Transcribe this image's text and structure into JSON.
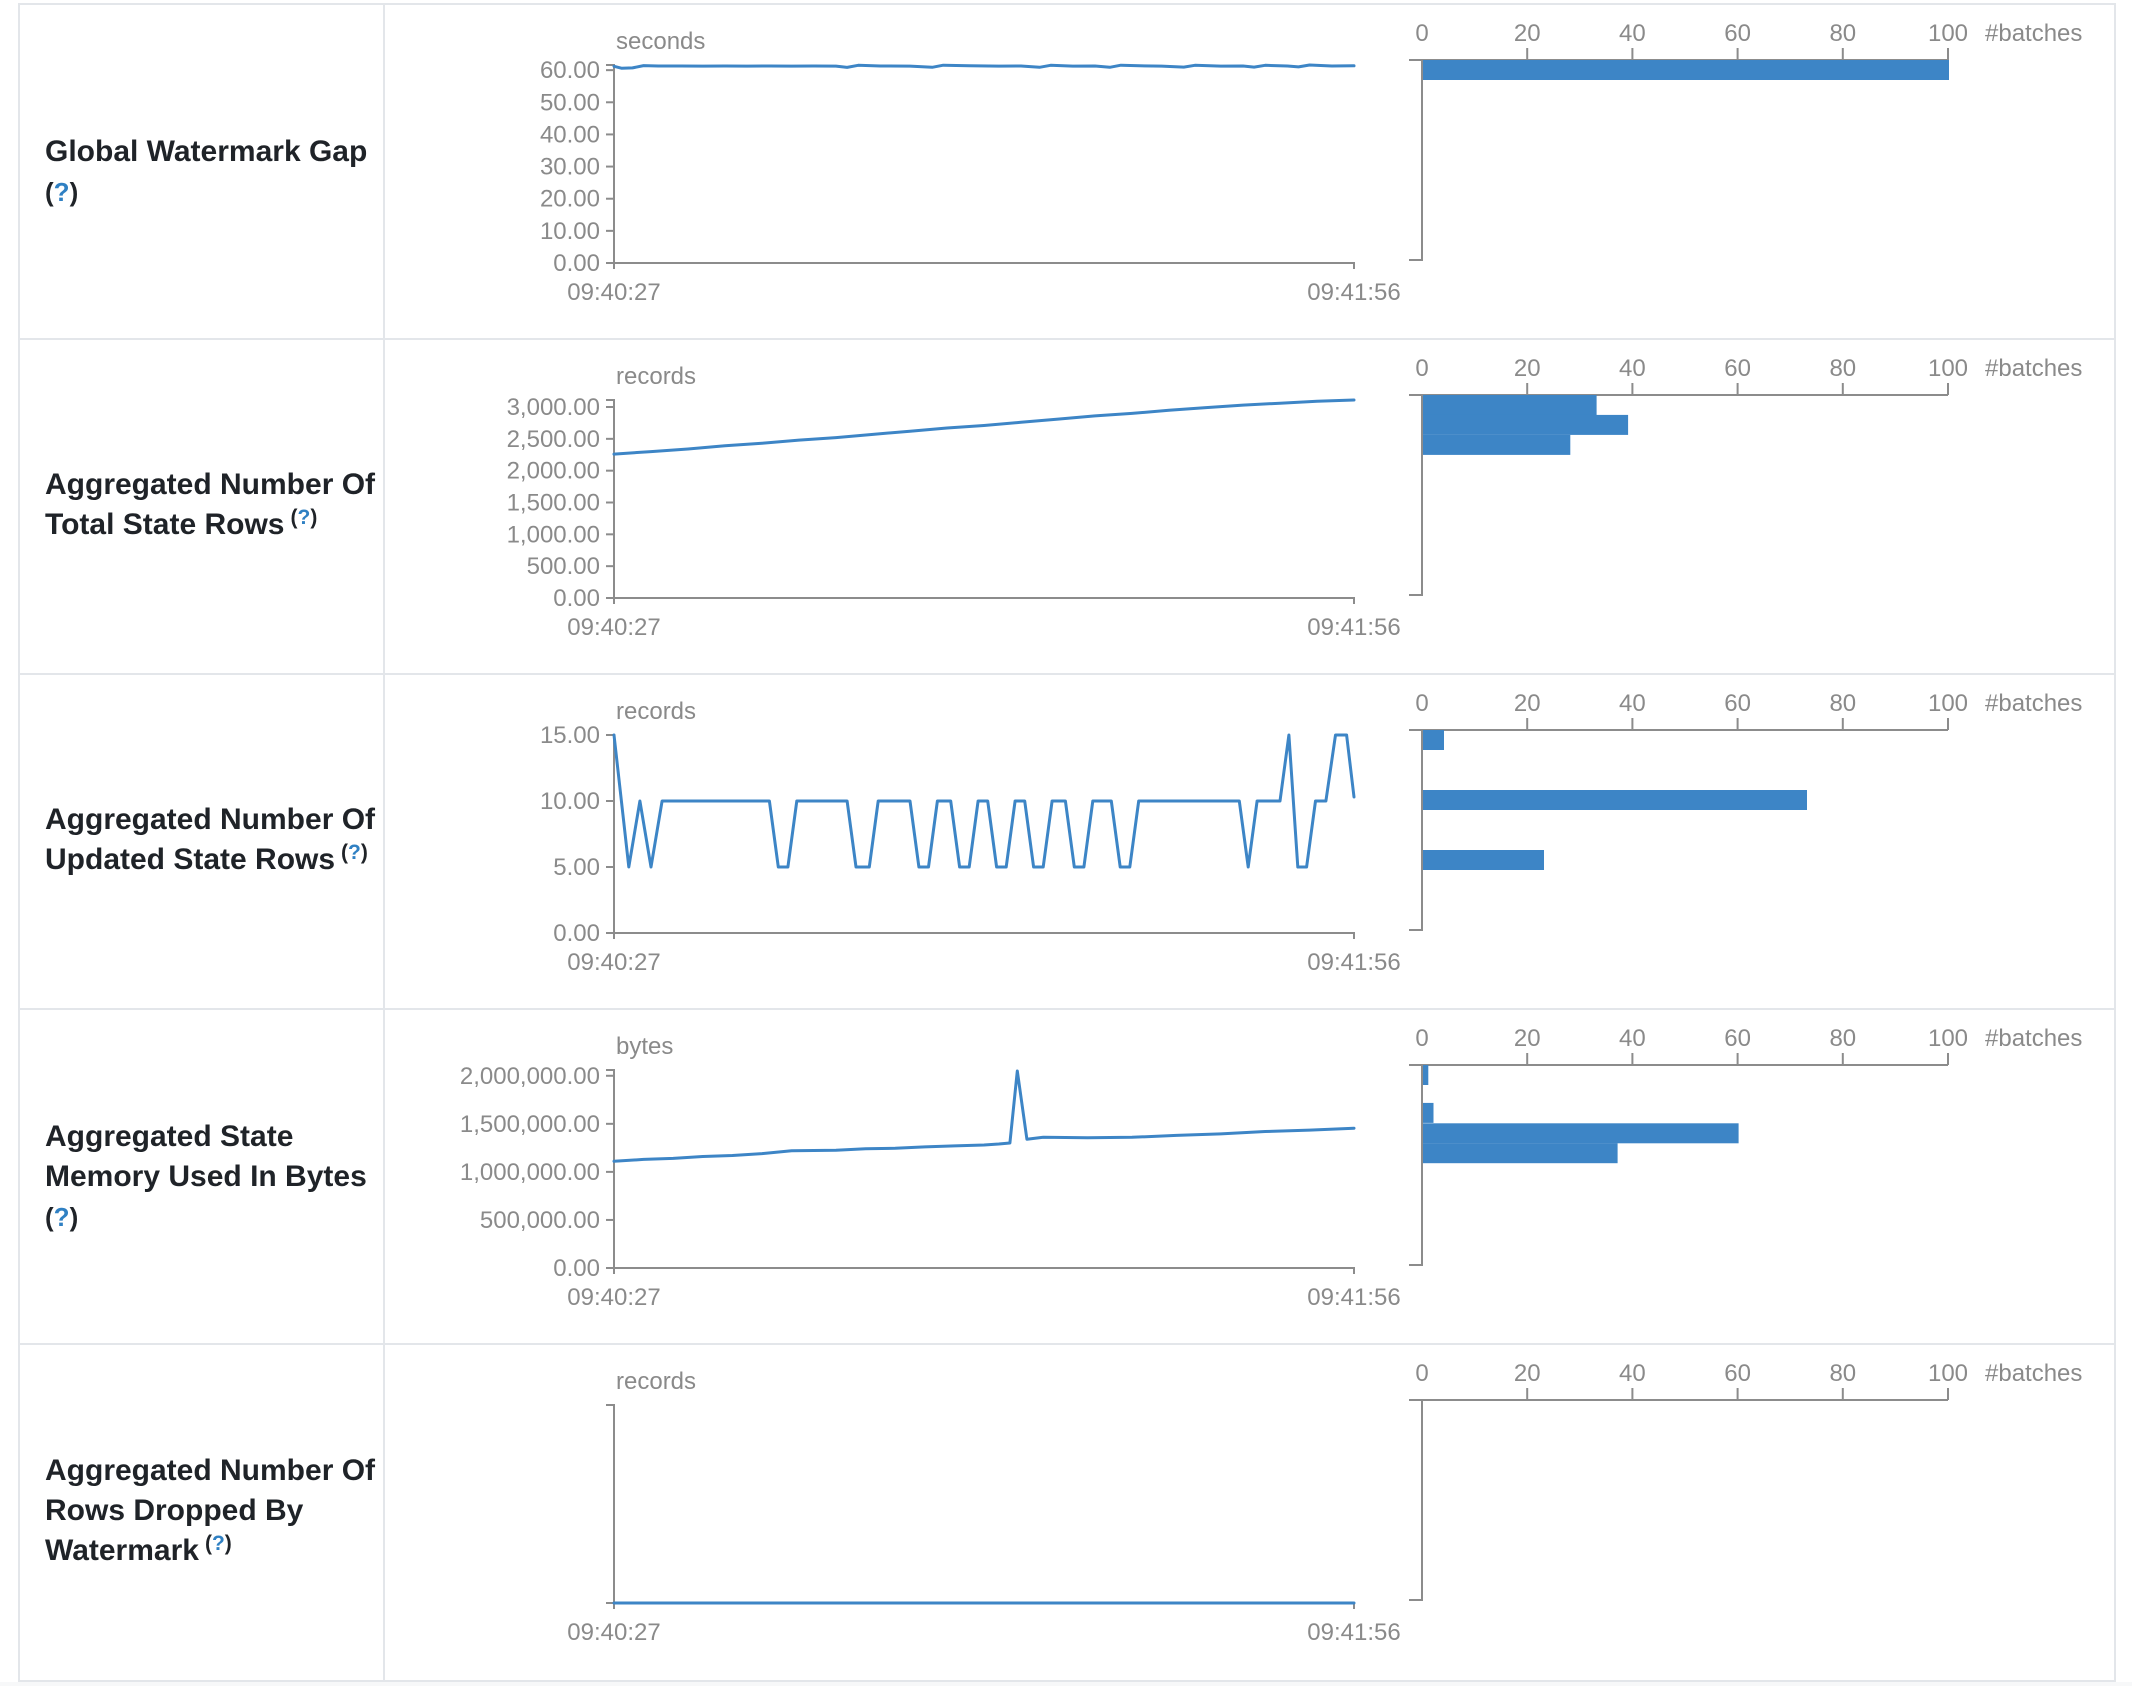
{
  "common": {
    "help_open": "(",
    "help_q": "?",
    "help_close": ")",
    "time_start": "09:40:27",
    "time_end": "09:41:56",
    "batches_axis": {
      "ticks": [
        "0",
        "20",
        "40",
        "60",
        "80",
        "100"
      ],
      "label": "#batches"
    },
    "colors": {
      "accent_blue": "#3d85c6",
      "axis_gray": "#8c8c8c",
      "text_gray": "#8a8a8a",
      "border_gray": "#e3e6ea",
      "label_dark": "#1f2328",
      "help_blue": "#2f80c3"
    }
  },
  "chart_data": [
    {
      "type": "line+histogram",
      "metric": "Global Watermark Gap",
      "label_lines": [
        "Global Watermark Gap"
      ],
      "help_inline": false,
      "unit": "seconds",
      "x_ticks": [
        "09:40:27",
        "09:41:56"
      ],
      "y_tick_values": [
        0,
        10,
        20,
        30,
        40,
        50,
        60
      ],
      "y_tick_labels": [
        "0.00",
        "10.00",
        "20.00",
        "30.00",
        "40.00",
        "50.00",
        "60.00"
      ],
      "y_max": 61.6,
      "line_points": [
        [
          0,
          61.2
        ],
        [
          0.01,
          60.6
        ],
        [
          0.025,
          60.7
        ],
        [
          0.04,
          61.4
        ],
        [
          0.06,
          61.3
        ],
        [
          0.09,
          61.3
        ],
        [
          0.12,
          61.25
        ],
        [
          0.15,
          61.3
        ],
        [
          0.18,
          61.25
        ],
        [
          0.21,
          61.3
        ],
        [
          0.24,
          61.25
        ],
        [
          0.27,
          61.3
        ],
        [
          0.3,
          61.25
        ],
        [
          0.315,
          60.85
        ],
        [
          0.33,
          61.5
        ],
        [
          0.36,
          61.3
        ],
        [
          0.4,
          61.25
        ],
        [
          0.43,
          60.9
        ],
        [
          0.445,
          61.55
        ],
        [
          0.48,
          61.35
        ],
        [
          0.52,
          61.25
        ],
        [
          0.55,
          61.3
        ],
        [
          0.575,
          60.9
        ],
        [
          0.59,
          61.5
        ],
        [
          0.62,
          61.25
        ],
        [
          0.65,
          61.3
        ],
        [
          0.67,
          60.9
        ],
        [
          0.685,
          61.55
        ],
        [
          0.71,
          61.35
        ],
        [
          0.74,
          61.25
        ],
        [
          0.77,
          60.95
        ],
        [
          0.785,
          61.5
        ],
        [
          0.82,
          61.25
        ],
        [
          0.85,
          61.3
        ],
        [
          0.865,
          60.95
        ],
        [
          0.88,
          61.5
        ],
        [
          0.91,
          61.3
        ],
        [
          0.925,
          61.0
        ],
        [
          0.94,
          61.6
        ],
        [
          0.97,
          61.3
        ],
        [
          1,
          61.35
        ]
      ],
      "histogram_bars": [
        {
          "value": 61.6,
          "count": 100
        }
      ]
    },
    {
      "type": "line+histogram",
      "metric": "Aggregated Number Of Total State Rows",
      "label_lines": [
        "Aggregated Number Of",
        "Total State Rows"
      ],
      "help_inline": true,
      "unit": "records",
      "x_ticks": [
        "09:40:27",
        "09:41:56"
      ],
      "y_tick_values": [
        0,
        500,
        1000,
        1500,
        2000,
        2500,
        3000
      ],
      "y_tick_labels": [
        "0.00",
        "500.00",
        "1,000.00",
        "1,500.00",
        "2,000.00",
        "2,500.00",
        "3,000.00"
      ],
      "y_max": 3110,
      "line_points": [
        [
          0,
          2260
        ],
        [
          0.05,
          2300
        ],
        [
          0.1,
          2340
        ],
        [
          0.15,
          2390
        ],
        [
          0.2,
          2430
        ],
        [
          0.25,
          2480
        ],
        [
          0.3,
          2520
        ],
        [
          0.35,
          2570
        ],
        [
          0.4,
          2620
        ],
        [
          0.45,
          2670
        ],
        [
          0.5,
          2710
        ],
        [
          0.55,
          2760
        ],
        [
          0.6,
          2810
        ],
        [
          0.65,
          2860
        ],
        [
          0.7,
          2900
        ],
        [
          0.75,
          2950
        ],
        [
          0.8,
          2990
        ],
        [
          0.85,
          3030
        ],
        [
          0.9,
          3060
        ],
        [
          0.95,
          3090
        ],
        [
          1,
          3110
        ]
      ],
      "histogram_bars": [
        {
          "value": 3110,
          "count": 33
        },
        {
          "value": 2800,
          "count": 39
        },
        {
          "value": 2490,
          "count": 28
        }
      ]
    },
    {
      "type": "line+histogram",
      "metric": "Aggregated Number Of Updated State Rows",
      "label_lines": [
        "Aggregated Number Of",
        "Updated State Rows"
      ],
      "help_inline": true,
      "unit": "records",
      "x_ticks": [
        "09:40:27",
        "09:41:56"
      ],
      "y_tick_values": [
        0,
        5,
        10,
        15
      ],
      "y_tick_labels": [
        "0.00",
        "5.00",
        "10.00",
        "15.00"
      ],
      "y_max": 15,
      "line_points": [
        [
          0,
          15
        ],
        [
          0.02,
          5
        ],
        [
          0.035,
          10
        ],
        [
          0.05,
          5
        ],
        [
          0.065,
          10
        ],
        [
          0.21,
          10
        ],
        [
          0.222,
          5
        ],
        [
          0.235,
          5
        ],
        [
          0.247,
          10
        ],
        [
          0.315,
          10
        ],
        [
          0.327,
          5
        ],
        [
          0.345,
          5
        ],
        [
          0.357,
          10
        ],
        [
          0.4,
          10
        ],
        [
          0.412,
          5
        ],
        [
          0.425,
          5
        ],
        [
          0.437,
          10
        ],
        [
          0.455,
          10
        ],
        [
          0.467,
          5
        ],
        [
          0.48,
          5
        ],
        [
          0.492,
          10
        ],
        [
          0.505,
          10
        ],
        [
          0.517,
          5
        ],
        [
          0.53,
          5
        ],
        [
          0.542,
          10
        ],
        [
          0.555,
          10
        ],
        [
          0.567,
          5
        ],
        [
          0.58,
          5
        ],
        [
          0.592,
          10
        ],
        [
          0.61,
          10
        ],
        [
          0.622,
          5
        ],
        [
          0.635,
          5
        ],
        [
          0.647,
          10
        ],
        [
          0.672,
          10
        ],
        [
          0.684,
          5
        ],
        [
          0.697,
          5
        ],
        [
          0.709,
          10
        ],
        [
          0.73,
          10
        ],
        [
          0.845,
          10
        ],
        [
          0.857,
          5
        ],
        [
          0.869,
          10
        ],
        [
          0.9,
          10
        ],
        [
          0.912,
          15
        ],
        [
          0.924,
          5
        ],
        [
          0.936,
          5
        ],
        [
          0.948,
          10
        ],
        [
          0.962,
          10
        ],
        [
          0.975,
          15
        ],
        [
          0.99,
          15
        ],
        [
          1,
          10.3
        ]
      ],
      "histogram_bars": [
        {
          "value": 15,
          "count": 4
        },
        {
          "value": 10.5,
          "count": 73
        },
        {
          "value": 6,
          "count": 23
        }
      ]
    },
    {
      "type": "line+histogram",
      "metric": "Aggregated State Memory Used In Bytes",
      "label_lines": [
        "Aggregated State",
        "Memory Used In Bytes"
      ],
      "help_inline": false,
      "unit": "bytes",
      "x_ticks": [
        "09:40:27",
        "09:41:56"
      ],
      "y_tick_values": [
        0,
        500000,
        1000000,
        1500000,
        2000000
      ],
      "y_tick_labels": [
        "0.00",
        "500,000.00",
        "1,000,000.00",
        "1,500,000.00",
        "2,000,000.00"
      ],
      "y_max": 2060000,
      "line_points": [
        [
          0,
          1110000
        ],
        [
          0.04,
          1130000
        ],
        [
          0.08,
          1140000
        ],
        [
          0.12,
          1160000
        ],
        [
          0.16,
          1170000
        ],
        [
          0.2,
          1190000
        ],
        [
          0.24,
          1220000
        ],
        [
          0.3,
          1225000
        ],
        [
          0.34,
          1240000
        ],
        [
          0.38,
          1245000
        ],
        [
          0.42,
          1260000
        ],
        [
          0.46,
          1270000
        ],
        [
          0.5,
          1280000
        ],
        [
          0.52,
          1290000
        ],
        [
          0.535,
          1300000
        ],
        [
          0.545,
          2050000
        ],
        [
          0.558,
          1340000
        ],
        [
          0.58,
          1360000
        ],
        [
          0.64,
          1355000
        ],
        [
          0.7,
          1360000
        ],
        [
          0.76,
          1380000
        ],
        [
          0.82,
          1395000
        ],
        [
          0.88,
          1420000
        ],
        [
          0.94,
          1435000
        ],
        [
          1,
          1455000
        ]
      ],
      "histogram_bars": [
        {
          "value": 2060000,
          "count": 1
        },
        {
          "value": 1670000,
          "count": 2
        },
        {
          "value": 1460000,
          "count": 60
        },
        {
          "value": 1255000,
          "count": 37
        }
      ]
    },
    {
      "type": "line+histogram",
      "metric": "Aggregated Number Of Rows Dropped By Watermark",
      "label_lines": [
        "Aggregated Number Of",
        "Rows Dropped By",
        "Watermark"
      ],
      "help_inline": true,
      "unit": "records",
      "x_ticks": [
        "09:40:27",
        "09:41:56"
      ],
      "y_tick_values": [],
      "y_tick_labels": [],
      "y_max": 1,
      "line_points": [
        [
          0,
          0
        ],
        [
          1,
          0
        ]
      ],
      "histogram_bars": []
    }
  ]
}
